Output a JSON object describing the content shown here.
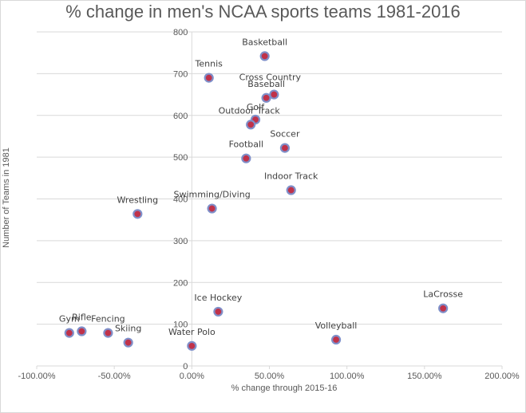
{
  "chart_data": {
    "type": "scatter",
    "title": "% change in men's NCAA sports teams 1981-2016",
    "xlabel": "% change through 2015-16",
    "ylabel": "Number of Teams in 1981",
    "xlim": [
      -100,
      200
    ],
    "ylim": [
      0,
      800
    ],
    "x_ticks": [
      "-100.00%",
      "-50.00%",
      "0.00%",
      "50.00%",
      "100.00%",
      "150.00%",
      "200.00%"
    ],
    "y_ticks": [
      "0",
      "100",
      "200",
      "300",
      "400",
      "500",
      "600",
      "700",
      "800"
    ],
    "grid": true,
    "marker_fill": "#c0324a",
    "marker_stroke": "#7f8fc9",
    "points": [
      {
        "label": "Basketball",
        "x": 47,
        "y": 742
      },
      {
        "label": "Tennis",
        "x": 11,
        "y": 690
      },
      {
        "label": "Cross Country",
        "x": 53,
        "y": 650
      },
      {
        "label": "Baseball",
        "x": 48,
        "y": 642
      },
      {
        "label": "Golf",
        "x": 41,
        "y": 590
      },
      {
        "label": "Outdoor Track",
        "x": 38,
        "y": 578
      },
      {
        "label": "Soccer",
        "x": 60,
        "y": 522
      },
      {
        "label": "Football",
        "x": 35,
        "y": 497
      },
      {
        "label": "Indoor Track",
        "x": 64,
        "y": 421
      },
      {
        "label": "Swimming/Diving",
        "x": 13,
        "y": 377
      },
      {
        "label": "Wrestling",
        "x": -35,
        "y": 364
      },
      {
        "label": "Ice Hockey",
        "x": 17,
        "y": 130
      },
      {
        "label": "LaCrosse",
        "x": 162,
        "y": 138
      },
      {
        "label": "Volleyball",
        "x": 93,
        "y": 63
      },
      {
        "label": "Gym",
        "x": -79,
        "y": 79
      },
      {
        "label": "Rifle",
        "x": -71,
        "y": 83
      },
      {
        "label": "Fencing",
        "x": -54,
        "y": 79
      },
      {
        "label": "Skiing",
        "x": -41,
        "y": 56
      },
      {
        "label": "Water Polo",
        "x": 0,
        "y": 48
      }
    ]
  }
}
